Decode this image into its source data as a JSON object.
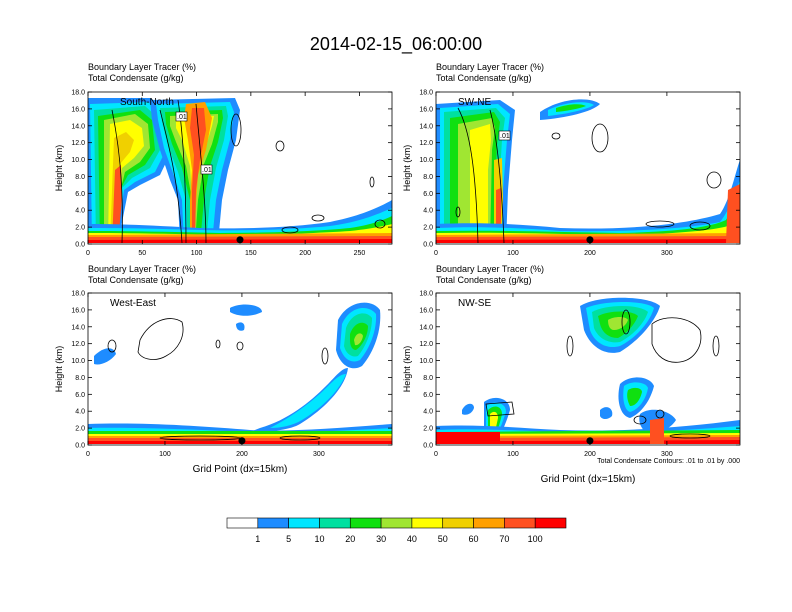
{
  "title": "2014-02-15_06:00:00",
  "panel_header": {
    "line1": "Boundary Layer Tracer   (%)",
    "line2": "Total Condensate   (g/kg)"
  },
  "ylabel": "Height (km)",
  "xlabel": "Grid Point (dx=15km)",
  "contour_note": "Total Condensate Contours: .01 to .01 by .000",
  "colorbar": {
    "colors": [
      "#ffffff",
      "#1e8cff",
      "#00e6ff",
      "#00e0a0",
      "#10e010",
      "#a0e632",
      "#ffff00",
      "#f0d000",
      "#ffa000",
      "#ff5020",
      "#ff0000"
    ],
    "labels": [
      "1",
      "5",
      "10",
      "20",
      "30",
      "40",
      "50",
      "60",
      "70",
      "100"
    ]
  },
  "chart_data": [
    {
      "type": "heatmap",
      "name": "South-North",
      "ylim": [
        0,
        18
      ],
      "yticks": [
        "0.0",
        "2.0",
        "4.0",
        "6.0",
        "8.0",
        "10.0",
        "12.0",
        "14.0",
        "16.0",
        "18.0"
      ],
      "xlim": [
        0,
        280
      ],
      "xticks": [
        0,
        50,
        100,
        150,
        200,
        250
      ],
      "xtick_labels": [
        "0",
        "50",
        "100",
        "150",
        "200",
        "250"
      ],
      "marker_x": 140,
      "contour_labels": [
        ".01",
        ".01"
      ]
    },
    {
      "type": "heatmap",
      "name": "SW-NE",
      "ylim": [
        0,
        18
      ],
      "yticks": [
        "0.0",
        "2.0",
        "4.0",
        "6.0",
        "8.0",
        "10.0",
        "12.0",
        "14.0",
        "16.0",
        "18.0"
      ],
      "xlim": [
        0,
        395
      ],
      "xticks": [
        0,
        100,
        200,
        300
      ],
      "xtick_labels": [
        "0",
        "100",
        "200",
        "300"
      ],
      "marker_x": 200,
      "contour_labels": [
        ".01"
      ]
    },
    {
      "type": "heatmap",
      "name": "West-East",
      "ylim": [
        0,
        18
      ],
      "yticks": [
        "0.0",
        "2.0",
        "4.0",
        "6.0",
        "8.0",
        "10.0",
        "12.0",
        "14.0",
        "16.0",
        "18.0"
      ],
      "xlim": [
        0,
        395
      ],
      "xticks": [
        0,
        100,
        200,
        300
      ],
      "xtick_labels": [
        "0",
        "100",
        "200",
        "300"
      ],
      "marker_x": 200,
      "contour_labels": []
    },
    {
      "type": "heatmap",
      "name": "NW-SE",
      "ylim": [
        0,
        18
      ],
      "yticks": [
        "0.0",
        "2.0",
        "4.0",
        "6.0",
        "8.0",
        "10.0",
        "12.0",
        "14.0",
        "16.0",
        "18.0"
      ],
      "xlim": [
        0,
        395
      ],
      "xticks": [
        0,
        100,
        200,
        300
      ],
      "xtick_labels": [
        "0",
        "100",
        "200",
        "300"
      ],
      "marker_x": 200,
      "contour_labels": []
    }
  ]
}
